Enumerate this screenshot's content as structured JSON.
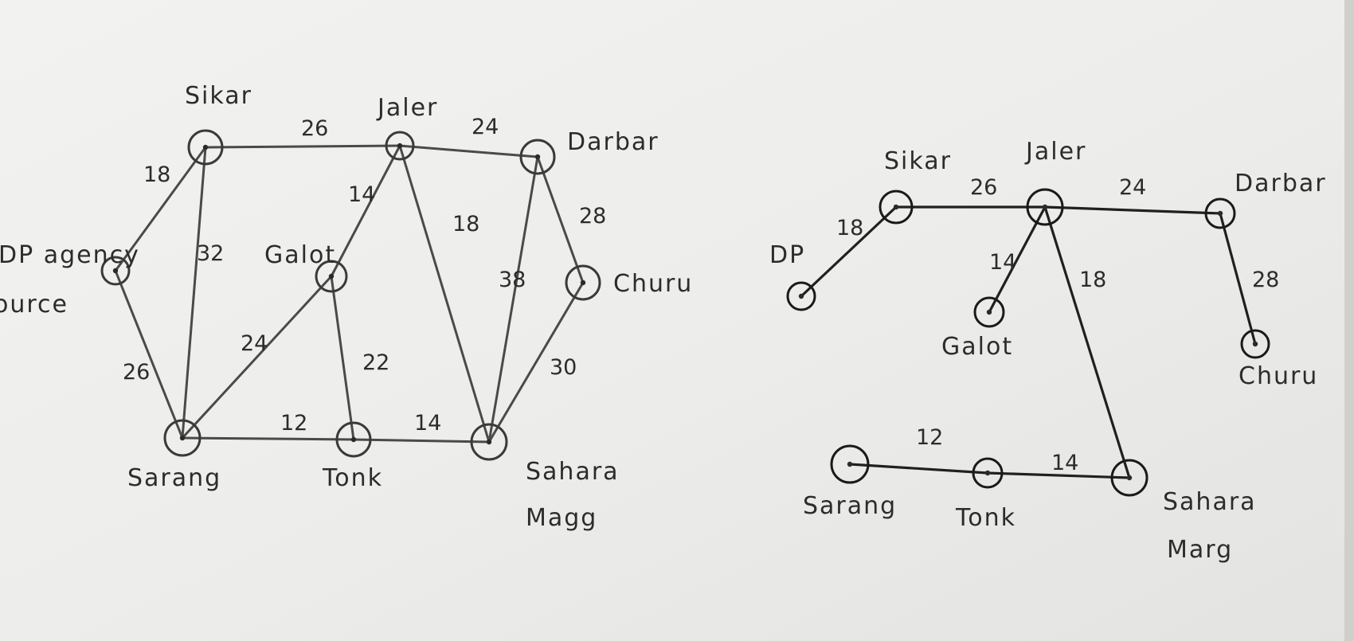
{
  "left_graph": {
    "nodes": [
      {
        "id": "sikar",
        "label": "Sikar"
      },
      {
        "id": "jaler",
        "label": "Jaler"
      },
      {
        "id": "darbar",
        "label": "Darbar"
      },
      {
        "id": "dp",
        "label": "DP agency",
        "sublabel": "ource"
      },
      {
        "id": "galot",
        "label": "Galot"
      },
      {
        "id": "churu",
        "label": "Churu"
      },
      {
        "id": "sarang",
        "label": "Sarang"
      },
      {
        "id": "tonk",
        "label": "Tonk"
      },
      {
        "id": "sahara",
        "label": "Sahara",
        "sublabel": "Magg"
      }
    ],
    "edges": [
      {
        "from": "dp",
        "to": "sikar",
        "weight": "18"
      },
      {
        "from": "sikar",
        "to": "jaler",
        "weight": "26"
      },
      {
        "from": "jaler",
        "to": "darbar",
        "weight": "24"
      },
      {
        "from": "sikar",
        "to": "sarang",
        "weight": "32"
      },
      {
        "from": "dp",
        "to": "sarang",
        "weight": "26"
      },
      {
        "from": "jaler",
        "to": "galot",
        "weight": "14"
      },
      {
        "from": "jaler",
        "to": "sahara",
        "weight": "18"
      },
      {
        "from": "galot",
        "to": "sarang",
        "weight": "24"
      },
      {
        "from": "galot",
        "to": "tonk",
        "weight": "22"
      },
      {
        "from": "darbar",
        "to": "churu",
        "weight": "28"
      },
      {
        "from": "darbar",
        "to": "sahara",
        "weight": "38"
      },
      {
        "from": "churu",
        "to": "sahara",
        "weight": "30"
      },
      {
        "from": "sarang",
        "to": "tonk",
        "weight": "12"
      },
      {
        "from": "tonk",
        "to": "sahara",
        "weight": "14"
      }
    ]
  },
  "right_graph": {
    "nodes": [
      {
        "id": "dp",
        "label": "DP"
      },
      {
        "id": "sikar",
        "label": "Sikar"
      },
      {
        "id": "jaler",
        "label": "Jaler"
      },
      {
        "id": "darbar",
        "label": "Darbar"
      },
      {
        "id": "galot",
        "label": "Galot"
      },
      {
        "id": "churu",
        "label": "Churu"
      },
      {
        "id": "sarang",
        "label": "Sarang"
      },
      {
        "id": "tonk",
        "label": "Tonk"
      },
      {
        "id": "sahara",
        "label": "Sahara",
        "sublabel": "Marg"
      }
    ],
    "edges": [
      {
        "from": "dp",
        "to": "sikar",
        "weight": "18"
      },
      {
        "from": "sikar",
        "to": "jaler",
        "weight": "26"
      },
      {
        "from": "jaler",
        "to": "darbar",
        "weight": "24"
      },
      {
        "from": "jaler",
        "to": "galot",
        "weight": "14"
      },
      {
        "from": "jaler",
        "to": "sahara",
        "weight": "18"
      },
      {
        "from": "darbar",
        "to": "churu",
        "weight": "28"
      },
      {
        "from": "sarang",
        "to": "tonk",
        "weight": "12"
      },
      {
        "from": "tonk",
        "to": "sahara",
        "weight": "14"
      }
    ]
  }
}
